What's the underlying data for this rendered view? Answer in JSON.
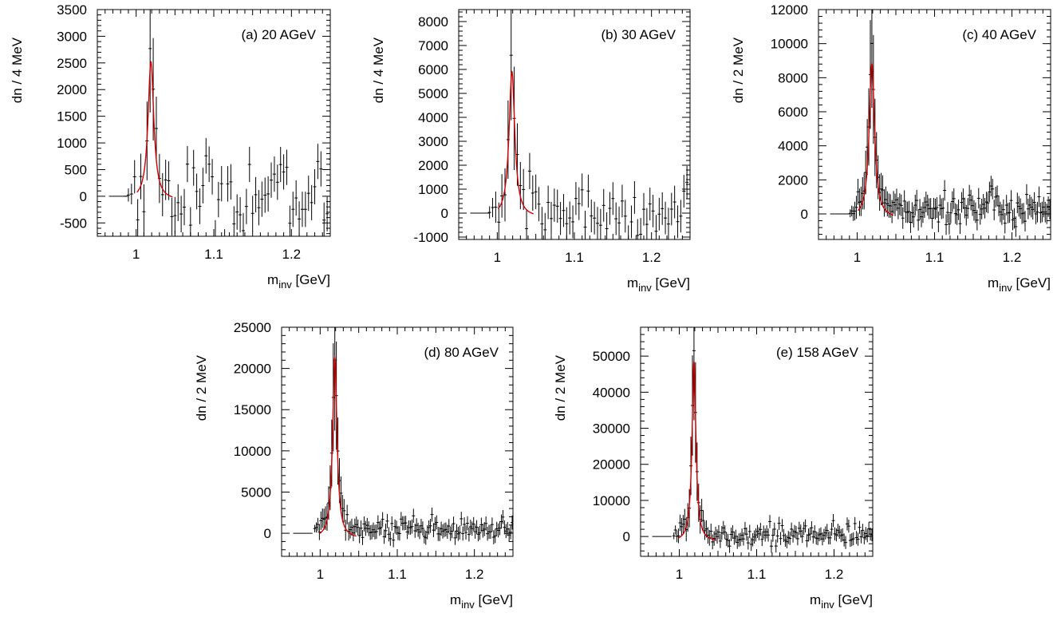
{
  "colors": {
    "data": "#000000",
    "fit": "#d40000",
    "frame": "#000000"
  },
  "chart_data": [
    {
      "type": "line",
      "label": "(a) 20 AGeV",
      "xlabel_main": "m",
      "xlabel_sub": "inv",
      "xlabel_unit": " [GeV]",
      "ylabel": "dn / 4 MeV",
      "xlim": [
        0.95,
        1.25
      ],
      "ylim": [
        -750,
        3500
      ],
      "xticks": [
        1,
        1.1,
        1.2
      ],
      "xtick_labels": [
        "1",
        "1.1",
        "1.2"
      ],
      "yticks": [
        -500,
        0,
        500,
        1000,
        1500,
        2000,
        2500,
        3000,
        3500
      ],
      "ytick_labels": [
        "-500",
        "0",
        "500",
        "1000",
        "1500",
        "2000",
        "2500",
        "3000",
        "3500"
      ],
      "x_start": 0.986,
      "bin_width": 0.004,
      "peak_mass": 1.019,
      "peak_height": 2600,
      "peak_gamma": 0.0045,
      "fit_range": [
        1.001,
        1.047
      ],
      "noise_amp": 380,
      "err_base": 330,
      "background": 0
    },
    {
      "type": "line",
      "label": "(b) 30 AGeV",
      "xlabel_main": "m",
      "xlabel_sub": "inv",
      "xlabel_unit": " [GeV]",
      "ylabel": "dn / 4 MeV",
      "xlim": [
        0.95,
        1.25
      ],
      "ylim": [
        -1100,
        8500
      ],
      "xticks": [
        1,
        1.1,
        1.2
      ],
      "xtick_labels": [
        "1",
        "1.1",
        "1.2"
      ],
      "yticks": [
        -1000,
        0,
        1000,
        2000,
        3000,
        4000,
        5000,
        6000,
        7000,
        8000
      ],
      "ytick_labels": [
        "-1000",
        "0",
        "1000",
        "2000",
        "3000",
        "4000",
        "5000",
        "6000",
        "7000",
        "8000"
      ],
      "x_start": 0.986,
      "bin_width": 0.004,
      "peak_mass": 1.019,
      "peak_height": 6100,
      "peak_gamma": 0.0045,
      "fit_range": [
        1.001,
        1.047
      ],
      "noise_amp": 600,
      "err_base": 680,
      "background": 0
    },
    {
      "type": "line",
      "label": "(c) 40 AGeV",
      "xlabel_main": "m",
      "xlabel_sub": "inv",
      "xlabel_unit": " [GeV]",
      "ylabel": "dn / 2 MeV",
      "xlim": [
        0.95,
        1.25
      ],
      "ylim": [
        -1500,
        12000
      ],
      "xticks": [
        1,
        1.1,
        1.2
      ],
      "xtick_labels": [
        "1",
        "1.1",
        "1.2"
      ],
      "yticks": [
        0,
        2000,
        4000,
        6000,
        8000,
        10000,
        12000
      ],
      "ytick_labels": [
        "0",
        "2000",
        "4000",
        "6000",
        "8000",
        "10000",
        "12000"
      ],
      "x_start": 0.991,
      "bin_width": 0.002,
      "peak_mass": 1.019,
      "peak_height": 9100,
      "peak_gamma": 0.0042,
      "fit_range": [
        1.001,
        1.047
      ],
      "noise_amp": 500,
      "err_base": 600,
      "background": 350
    },
    {
      "type": "line",
      "label": "(d) 80 AGeV",
      "xlabel_main": "m",
      "xlabel_sub": "inv",
      "xlabel_unit": " [GeV]",
      "ylabel": "dn / 2 MeV",
      "xlim": [
        0.95,
        1.25
      ],
      "ylim": [
        -2800,
        25000
      ],
      "xticks": [
        1,
        1.1,
        1.2
      ],
      "xtick_labels": [
        "1",
        "1.1",
        "1.2"
      ],
      "yticks": [
        0,
        5000,
        10000,
        15000,
        20000,
        25000
      ],
      "ytick_labels": [
        "0",
        "5000",
        "10000",
        "15000",
        "20000",
        "25000"
      ],
      "x_start": 0.993,
      "bin_width": 0.002,
      "peak_mass": 1.019,
      "peak_height": 22000,
      "peak_gamma": 0.0034,
      "fit_range": [
        0.999,
        1.047
      ],
      "noise_amp": 700,
      "err_base": 850,
      "background": 300
    },
    {
      "type": "line",
      "label": "(e) 158 AGeV",
      "xlabel_main": "m",
      "xlabel_sub": "inv",
      "xlabel_unit": " [GeV]",
      "ylabel": "dn / 2 MeV",
      "xlim": [
        0.95,
        1.25
      ],
      "ylim": [
        -5500,
        58000
      ],
      "xticks": [
        1,
        1.1,
        1.2
      ],
      "xtick_labels": [
        "1",
        "1.1",
        "1.2"
      ],
      "yticks": [
        0,
        10000,
        20000,
        30000,
        40000,
        50000
      ],
      "ytick_labels": [
        "0",
        "10000",
        "20000",
        "30000",
        "40000",
        "50000"
      ],
      "x_start": 0.993,
      "bin_width": 0.002,
      "peak_mass": 1.019,
      "peak_height": 50000,
      "peak_gamma": 0.003,
      "fit_range": [
        0.999,
        1.047
      ],
      "noise_amp": 1500,
      "err_base": 1800,
      "background": 500
    }
  ]
}
